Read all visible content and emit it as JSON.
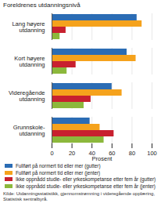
{
  "chart_data": {
    "type": "bar",
    "orientation": "horizontal",
    "y_label": "Foreldrenes utdanningsnivå",
    "x_label": "Prosent",
    "categories": [
      "Lang høyere\nutdanning",
      "Kort høyere\nutdanning",
      "Videregående\nutdanning",
      "Grunnskole-\nutdanning"
    ],
    "series": [
      {
        "name": "Fullført på normert tid eller mer (gutter)",
        "color": "#2b6cb4",
        "values": [
          85,
          75,
          60,
          38
        ]
      },
      {
        "name": "Fullført på normert tid eller mer (jenter)",
        "color": "#f5a21c",
        "values": [
          90,
          84,
          70,
          48
        ]
      },
      {
        "name": "Ikke oppnådd studie- eller yrkeskompetanse etter fem år (gutter)",
        "color": "#c8202f",
        "values": [
          14,
          24,
          39,
          62
        ]
      },
      {
        "name": "Ikke oppnådd studie- eller yrkeskompetanse etter fem år (jenter)",
        "color": "#8cb83c",
        "values": [
          8,
          15,
          32,
          52
        ]
      }
    ],
    "xlim": [
      0,
      100
    ],
    "xticks": [
      0,
      20,
      40,
      60,
      80,
      100
    ],
    "grid": true,
    "legend": "bottom",
    "source": "Kilde: Utdanningsstatistikk, gjennomstrømning i videregående opplæring, Statistisk sentralbyrå."
  }
}
